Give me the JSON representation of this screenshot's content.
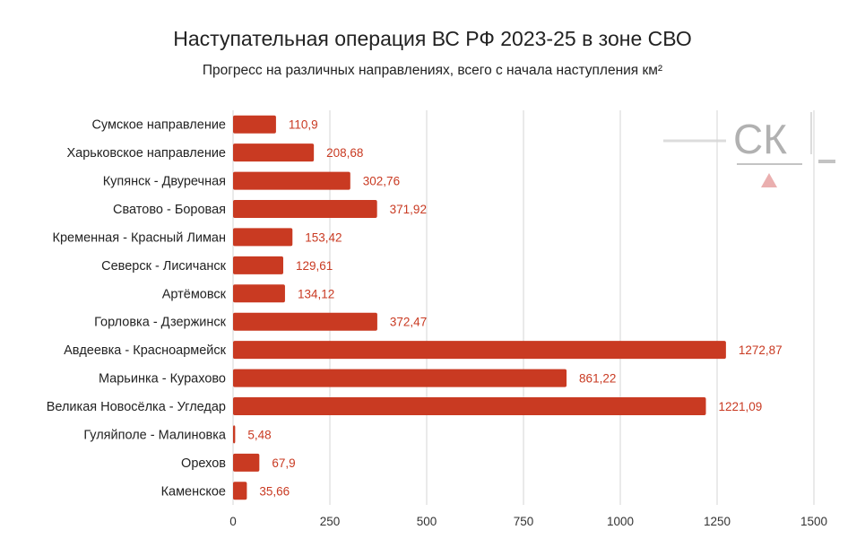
{
  "chart_data": {
    "type": "bar",
    "orientation": "horizontal",
    "title": "Наступательная операция ВС РФ 2023-25 в зоне СВО",
    "subtitle": "Прогресс на различных направлениях, всего с начала наступления км²",
    "categories": [
      "Сумское направление",
      "Харьковское направление",
      "Купянск - Двуречная",
      "Сватово - Боровая",
      "Кременная - Красный Лиман",
      "Северск - Лисичанск",
      "Артёмовск",
      "Горловка - Дзержинск",
      "Авдеевка - Красноармейск",
      "Марьинка - Курахово",
      "Великая Новосёлка - Угледар",
      "Гуляйполе - Малиновка",
      "Орехов",
      "Каменское"
    ],
    "values": [
      110.9,
      208.68,
      302.76,
      371.92,
      153.42,
      129.61,
      134.12,
      372.47,
      1272.87,
      861.22,
      1221.09,
      5.48,
      67.9,
      35.66
    ],
    "value_labels": [
      "110,9",
      "208,68",
      "302,76",
      "371,92",
      "153,42",
      "129,61",
      "134,12",
      "372,47",
      "1272,87",
      "861,22",
      "1221,09",
      "5,48",
      "67,9",
      "35,66"
    ],
    "xlim": [
      0,
      1500
    ],
    "xticks": [
      0,
      250,
      500,
      750,
      1000,
      1250,
      1500
    ],
    "grid": "vertical",
    "legend": "none",
    "bar_color": "#c93a22",
    "label_color": "#c93a22"
  },
  "watermark": {
    "text": "СК"
  }
}
